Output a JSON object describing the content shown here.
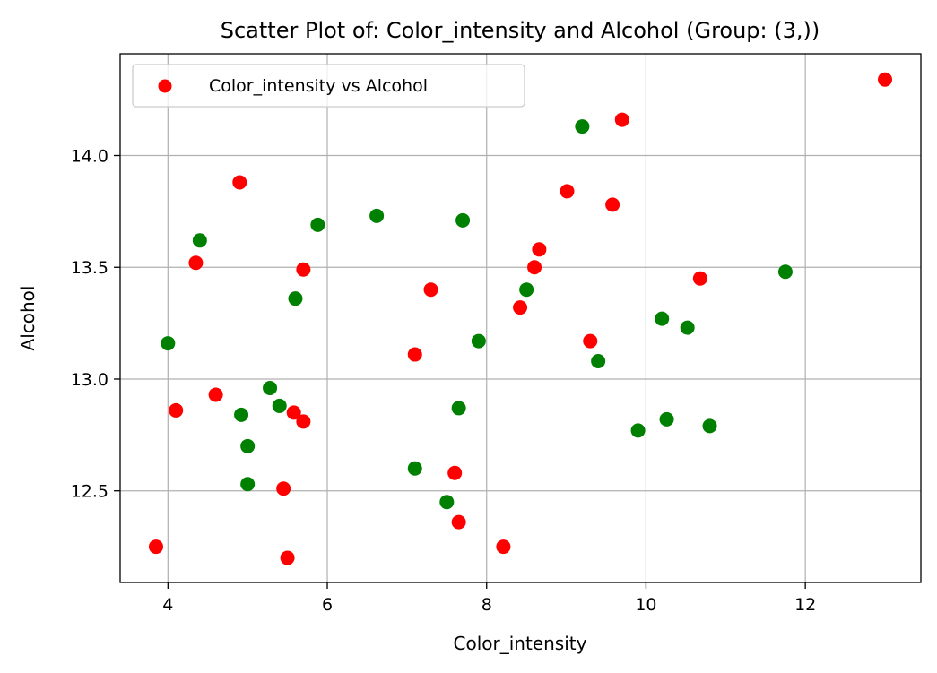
{
  "chart_data": {
    "type": "scatter",
    "title": "Scatter Plot of: Color_intensity and Alcohol (Group: (3,))",
    "xlabel": "Color_intensity",
    "ylabel": "Alcohol",
    "xlim": [
      3.4,
      13.45
    ],
    "ylim": [
      12.09,
      14.455
    ],
    "xticks": [
      4,
      6,
      8,
      10,
      12
    ],
    "yticks": [
      12.5,
      13.0,
      13.5,
      14.0
    ],
    "xtick_labels": [
      "4",
      "6",
      "8",
      "10",
      "12"
    ],
    "ytick_labels": [
      "12.5",
      "13.0",
      "13.5",
      "14.0"
    ],
    "grid": true,
    "legend": {
      "position": "top-left",
      "entries": [
        {
          "label": "Color_intensity vs Alcohol",
          "color": "#ff0000"
        }
      ]
    },
    "series": [
      {
        "name": "Color_intensity vs Alcohol",
        "color": "#ff0000",
        "points": [
          [
            3.85,
            12.25
          ],
          [
            4.1,
            12.86
          ],
          [
            4.35,
            13.52
          ],
          [
            4.6,
            12.93
          ],
          [
            4.9,
            13.88
          ],
          [
            5.45,
            12.51
          ],
          [
            5.5,
            12.2
          ],
          [
            5.58,
            12.85
          ],
          [
            5.7,
            12.81
          ],
          [
            5.7,
            13.49
          ],
          [
            7.1,
            13.11
          ],
          [
            7.3,
            13.4
          ],
          [
            7.6,
            12.58
          ],
          [
            7.65,
            12.36
          ],
          [
            8.21,
            12.25
          ],
          [
            8.42,
            13.32
          ],
          [
            8.6,
            13.5
          ],
          [
            8.66,
            13.58
          ],
          [
            9.01,
            13.84
          ],
          [
            9.3,
            13.17
          ],
          [
            9.58,
            13.78
          ],
          [
            9.7,
            14.16
          ],
          [
            10.68,
            13.45
          ],
          [
            13.0,
            14.34
          ]
        ]
      },
      {
        "color": "#008000",
        "points": [
          [
            4.0,
            13.16
          ],
          [
            4.4,
            13.62
          ],
          [
            4.92,
            12.84
          ],
          [
            5.0,
            12.7
          ],
          [
            5.0,
            12.53
          ],
          [
            5.28,
            12.96
          ],
          [
            5.4,
            12.88
          ],
          [
            5.6,
            13.36
          ],
          [
            5.88,
            13.69
          ],
          [
            6.62,
            13.73
          ],
          [
            7.1,
            12.6
          ],
          [
            7.5,
            12.45
          ],
          [
            7.65,
            12.87
          ],
          [
            7.7,
            13.71
          ],
          [
            7.9,
            13.17
          ],
          [
            8.5,
            13.4
          ],
          [
            9.2,
            14.13
          ],
          [
            9.4,
            13.08
          ],
          [
            9.9,
            12.77
          ],
          [
            10.2,
            13.27
          ],
          [
            10.26,
            12.82
          ],
          [
            10.52,
            13.23
          ],
          [
            10.8,
            12.79
          ],
          [
            11.75,
            13.48
          ]
        ]
      }
    ]
  }
}
